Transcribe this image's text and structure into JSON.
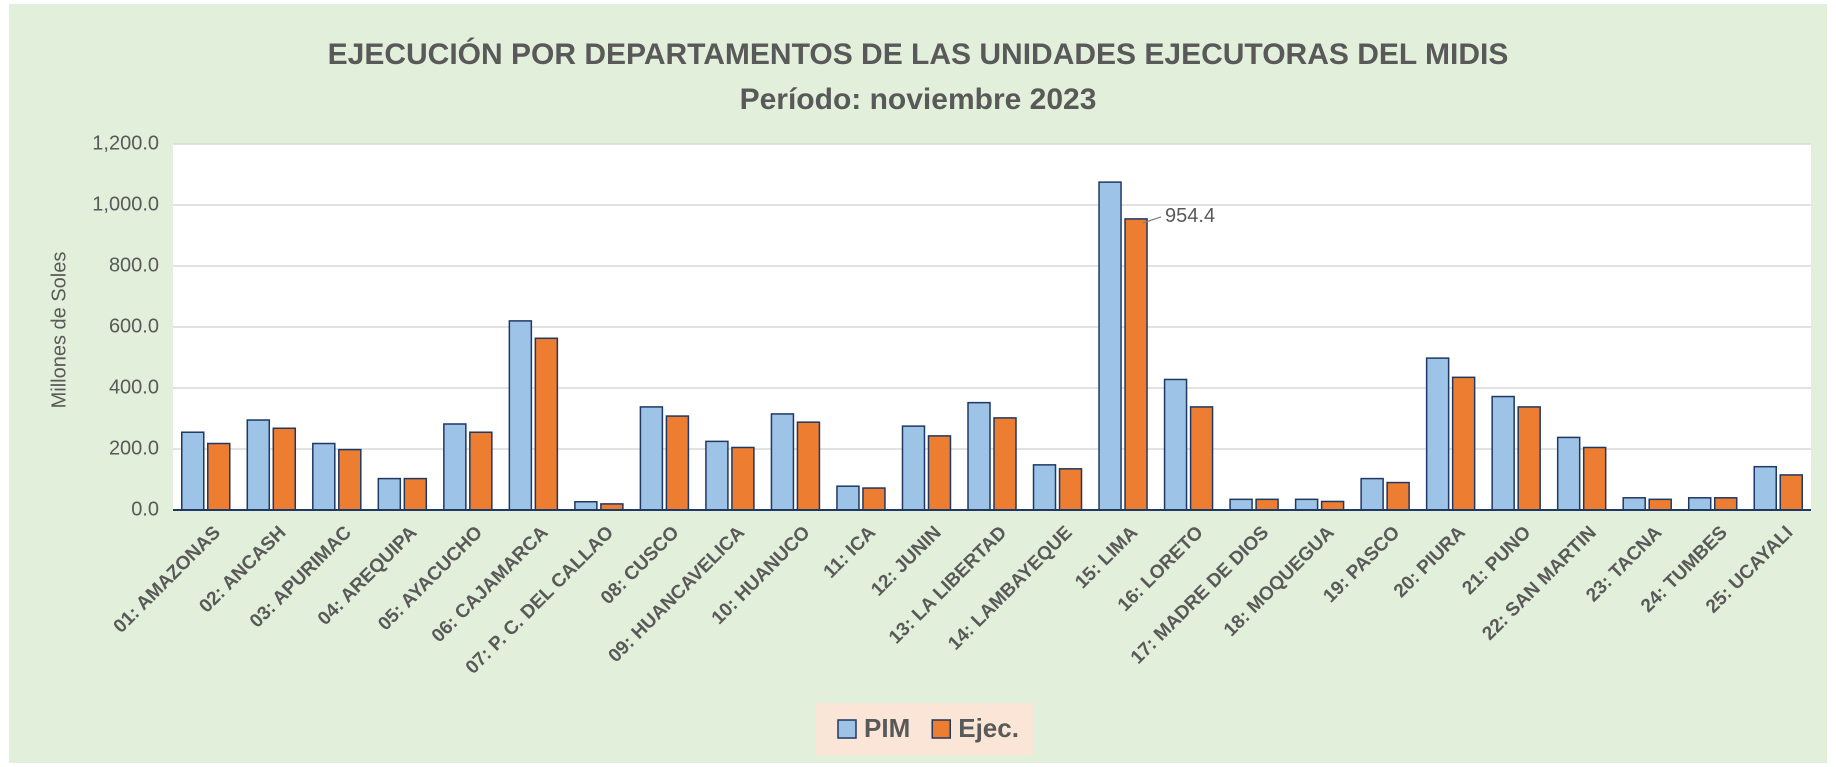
{
  "chart_data": {
    "type": "bar",
    "title": "EJECUCIÓN POR DEPARTAMENTOS DE LAS UNIDADES EJECUTORAS DEL MIDIS",
    "subtitle": "Período: noviembre 2023",
    "y_label": "Millones de Soles",
    "categories": [
      "01: AMAZONAS",
      "02: ANCASH",
      "03: APURIMAC",
      "04: AREQUIPA",
      "05: AYACUCHO",
      "06: CAJAMARCA",
      "07: P. C. DEL CALLAO",
      "08: CUSCO",
      "09: HUANCAVELICA",
      "10: HUANUCO",
      "11: ICA",
      "12: JUNIN",
      "13: LA LIBERTAD",
      "14: LAMBAYEQUE",
      "15: LIMA",
      "16: LORETO",
      "17: MADRE DE DIOS",
      "18: MOQUEGUA",
      "19: PASCO",
      "20: PIURA",
      "21: PUNO",
      "22: SAN MARTIN",
      "23: TACNA",
      "24: TUMBES",
      "25: UCAYALI"
    ],
    "series": [
      {
        "name": "PIM",
        "color": "#9dc3e6",
        "values": [
          255,
          295,
          218,
          103,
          282,
          620,
          27,
          338,
          225,
          315,
          78,
          275,
          352,
          148,
          1075,
          428,
          35,
          35,
          103,
          498,
          372,
          238,
          40,
          40,
          142
        ]
      },
      {
        "name": "Ejec.",
        "color": "#ed7d31",
        "values": [
          218,
          268,
          198,
          103,
          255,
          563,
          20,
          308,
          205,
          288,
          72,
          243,
          302,
          135,
          954.4,
          338,
          35,
          28,
          90,
          435,
          338,
          205,
          35,
          40,
          115
        ],
        "value_labels": [
          null,
          null,
          null,
          null,
          null,
          null,
          null,
          null,
          null,
          null,
          null,
          null,
          null,
          null,
          "954.4",
          null,
          null,
          null,
          null,
          null,
          null,
          null,
          null,
          null,
          null
        ]
      }
    ],
    "ylim": [
      0,
      1200
    ],
    "yticks": [
      {
        "value": 0,
        "label": "0.0"
      },
      {
        "value": 200,
        "label": "200.0"
      },
      {
        "value": 400,
        "label": "400.0"
      },
      {
        "value": 600,
        "label": "600.0"
      },
      {
        "value": 800,
        "label": "800.0"
      },
      {
        "value": 1000,
        "label": "1,000.0"
      },
      {
        "value": 1200,
        "label": "1,200.0"
      }
    ],
    "grid": true,
    "legend": "bottom"
  }
}
